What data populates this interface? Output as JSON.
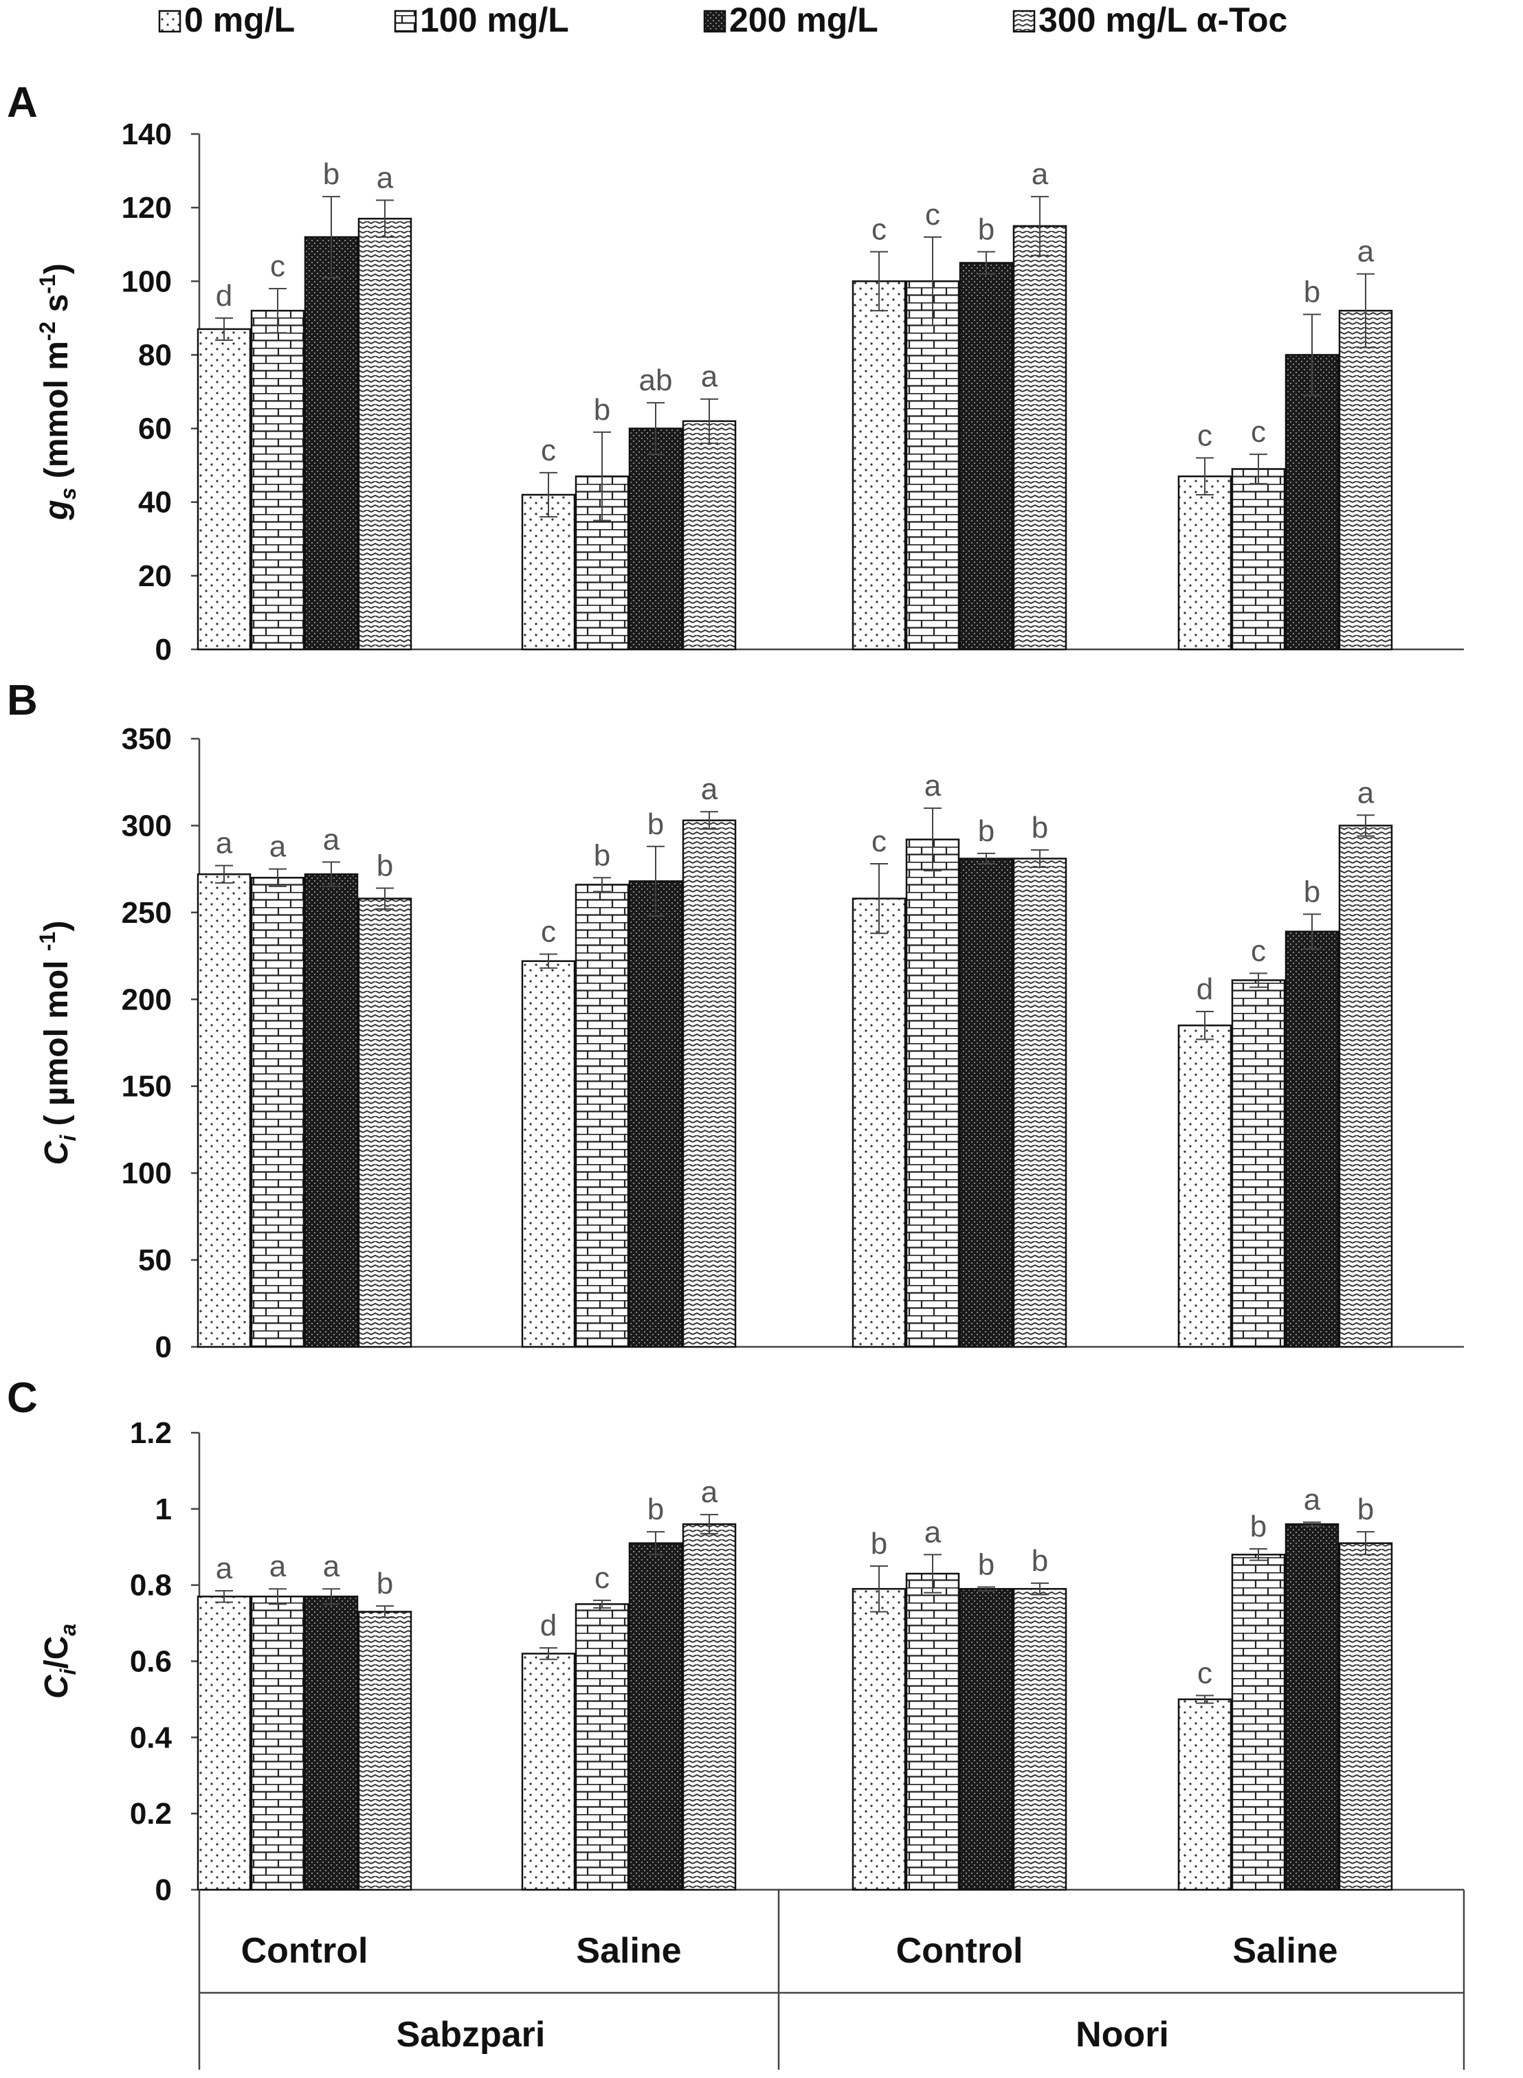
{
  "colors": {
    "bar_fill": "#ffffff",
    "bar_stroke": "#111111",
    "pattern_ink": "#222222",
    "letter_color": "#555555",
    "axis_color": "#444444"
  },
  "legend": {
    "items": [
      {
        "label": "0 mg/L",
        "pattern": "dots"
      },
      {
        "label": "100 mg/L",
        "pattern": "bricks"
      },
      {
        "label": "200 mg/L",
        "pattern": "dark"
      },
      {
        "label": "300 mg/L α-Toc",
        "pattern": "waves"
      }
    ]
  },
  "x_axis": {
    "groups": [
      "Control",
      "Saline",
      "Control",
      "Saline"
    ],
    "varieties": [
      "Sabzpari",
      "Noori"
    ]
  },
  "chart_data": [
    {
      "type": "bar",
      "panel_label": "A",
      "ylabel": "gs (mmol m-2 s-1)",
      "ylabel_parts": {
        "main": "g",
        "sub": "s",
        "unit_pre": " (mmol m",
        "sup1": "-2",
        "unit_mid": " s",
        "sup2": "-1",
        "unit_post": ")"
      },
      "ylim": [
        0,
        140
      ],
      "yticks": [
        0,
        20,
        40,
        60,
        80,
        100,
        120,
        140
      ],
      "ytick_labels": [
        "0",
        "20",
        "40",
        "60",
        "80",
        "100",
        "120",
        "140"
      ],
      "categories": [
        "Sabzpari Control",
        "Sabzpari Saline",
        "Noori Control",
        "Noori Saline"
      ],
      "series": [
        {
          "name": "0 mg/L",
          "values": [
            87,
            42,
            100,
            47
          ],
          "errors": [
            3,
            6,
            8,
            5
          ],
          "letters": [
            "d",
            "c",
            "c",
            "c"
          ]
        },
        {
          "name": "100 mg/L",
          "values": [
            92,
            47,
            100,
            49
          ],
          "errors": [
            6,
            12,
            12,
            4
          ],
          "letters": [
            "c",
            "b",
            "c",
            "c"
          ]
        },
        {
          "name": "200 mg/L",
          "values": [
            112,
            60,
            105,
            80
          ],
          "errors": [
            11,
            7,
            3,
            11
          ],
          "letters": [
            "b",
            "ab",
            "b",
            "b"
          ]
        },
        {
          "name": "300 mg/L α-Toc",
          "values": [
            117,
            62,
            115,
            92
          ],
          "errors": [
            5,
            6,
            8,
            10
          ],
          "letters": [
            "a",
            "a",
            "a",
            "a"
          ]
        }
      ]
    },
    {
      "type": "bar",
      "panel_label": "B",
      "ylabel": "Ci ( µmol mol-1)",
      "ylabel_parts": {
        "main": "C",
        "sub": "i",
        "unit_pre": " ( µmol mol ",
        "sup1": "-1",
        "unit_mid": "",
        "sup2": "",
        "unit_post": ")"
      },
      "ylim": [
        0,
        350
      ],
      "yticks": [
        0,
        50,
        100,
        150,
        200,
        250,
        300,
        350
      ],
      "ytick_labels": [
        "0",
        "50",
        "100",
        "150",
        "200",
        "250",
        "300",
        "350"
      ],
      "categories": [
        "Sabzpari Control",
        "Sabzpari Saline",
        "Noori Control",
        "Noori Saline"
      ],
      "series": [
        {
          "name": "0 mg/L",
          "values": [
            272,
            222,
            258,
            185
          ],
          "errors": [
            5,
            4,
            20,
            8
          ],
          "letters": [
            "a",
            "c",
            "c",
            "d"
          ]
        },
        {
          "name": "100 mg/L",
          "values": [
            270,
            266,
            292,
            211
          ],
          "errors": [
            5,
            4,
            18,
            4
          ],
          "letters": [
            "a",
            "b",
            "a",
            "c"
          ]
        },
        {
          "name": "200 mg/L",
          "values": [
            272,
            268,
            281,
            239
          ],
          "errors": [
            7,
            20,
            3,
            10
          ],
          "letters": [
            "a",
            "b",
            "b",
            "b"
          ]
        },
        {
          "name": "300 mg/L α-Toc",
          "values": [
            258,
            303,
            281,
            300
          ],
          "errors": [
            6,
            5,
            5,
            6
          ],
          "letters": [
            "b",
            "a",
            "b",
            "a"
          ]
        }
      ]
    },
    {
      "type": "bar",
      "panel_label": "C",
      "ylabel": "Ci/Ca",
      "ylabel_parts": {
        "main": "C",
        "sub": "i",
        "unit_pre": "/C",
        "sup1": "",
        "unit_mid": "",
        "sup2": "",
        "unit_post": "",
        "sub2": "a"
      },
      "ylim": [
        0,
        1.2
      ],
      "yticks": [
        0,
        0.2,
        0.4,
        0.6,
        0.8,
        1.0,
        1.2
      ],
      "ytick_labels": [
        "0",
        "0.2",
        "0.4",
        "0.6",
        "0.8",
        "1",
        "1.2"
      ],
      "categories": [
        "Sabzpari Control",
        "Sabzpari Saline",
        "Noori Control",
        "Noori Saline"
      ],
      "series": [
        {
          "name": "0 mg/L",
          "values": [
            0.77,
            0.62,
            0.79,
            0.5
          ],
          "errors": [
            0.015,
            0.015,
            0.06,
            0.01
          ],
          "letters": [
            "a",
            "d",
            "b",
            "c"
          ]
        },
        {
          "name": "100 mg/L",
          "values": [
            0.77,
            0.75,
            0.83,
            0.88
          ],
          "errors": [
            0.02,
            0.01,
            0.05,
            0.015
          ],
          "letters": [
            "a",
            "c",
            "a",
            "b"
          ]
        },
        {
          "name": "200 mg/L",
          "values": [
            0.77,
            0.91,
            0.79,
            0.96
          ],
          "errors": [
            0.02,
            0.03,
            0.005,
            0.005
          ],
          "letters": [
            "a",
            "b",
            "b",
            "a"
          ]
        },
        {
          "name": "300 mg/L α-Toc",
          "values": [
            0.73,
            0.96,
            0.79,
            0.91
          ],
          "errors": [
            0.015,
            0.025,
            0.015,
            0.03
          ],
          "letters": [
            "b",
            "a",
            "b",
            "b"
          ]
        }
      ]
    }
  ]
}
